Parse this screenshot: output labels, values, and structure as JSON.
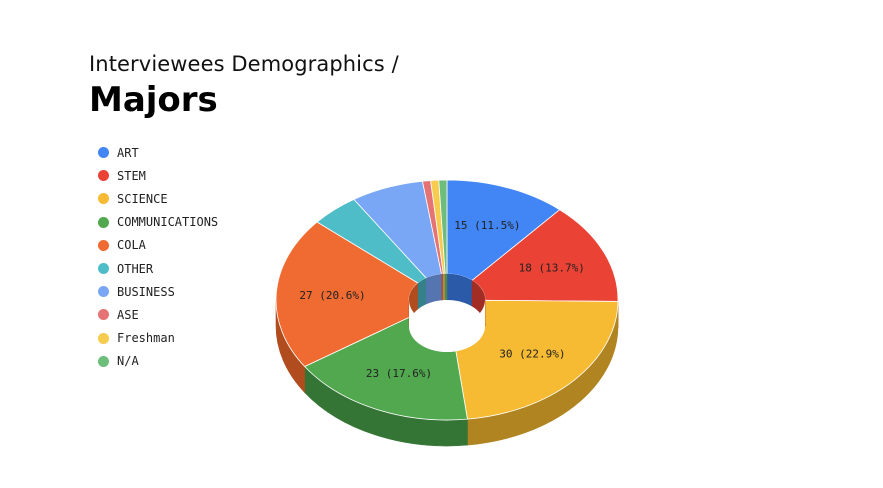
{
  "header": {
    "subtitle": "Interviewees Demographics /",
    "title": "Majors"
  },
  "chart_data": {
    "type": "pie",
    "style": "3d-donut",
    "legend_position": "left",
    "slices": [
      {
        "name": "ART",
        "value": 15,
        "label": "15 (11.5%)",
        "color": "#4285f4",
        "side": "#2b5aa8"
      },
      {
        "name": "STEM",
        "value": 18,
        "label": "18 (13.7%)",
        "color": "#ea4335",
        "side": "#a12d24"
      },
      {
        "name": "SCIENCE",
        "value": 30,
        "label": "30 (22.9%)",
        "color": "#f6bb33",
        "side": "#b08420"
      },
      {
        "name": "COMMUNICATIONS",
        "value": 23,
        "label": "23 (17.6%)",
        "color": "#51a84f",
        "side": "#347535"
      },
      {
        "name": "COLA",
        "value": 27,
        "label": "27 (20.6%)",
        "color": "#ef6b31",
        "side": "#b14c1f"
      },
      {
        "name": "OTHER",
        "value": 6,
        "label": "",
        "color": "#4fbdc7",
        "side": "#348189"
      },
      {
        "name": "BUSINESS",
        "value": 9,
        "label": "",
        "color": "#7aa7f5",
        "side": "#5475b0"
      },
      {
        "name": "ASE",
        "value": 1,
        "label": "",
        "color": "#e57373",
        "side": "#a55050"
      },
      {
        "name": "Freshman",
        "value": 1,
        "label": "",
        "color": "#f7cb4d",
        "side": "#b39234"
      },
      {
        "name": "N/A",
        "value": 1,
        "label": "",
        "color": "#6dbd7b",
        "side": "#4a8a55"
      }
    ]
  }
}
